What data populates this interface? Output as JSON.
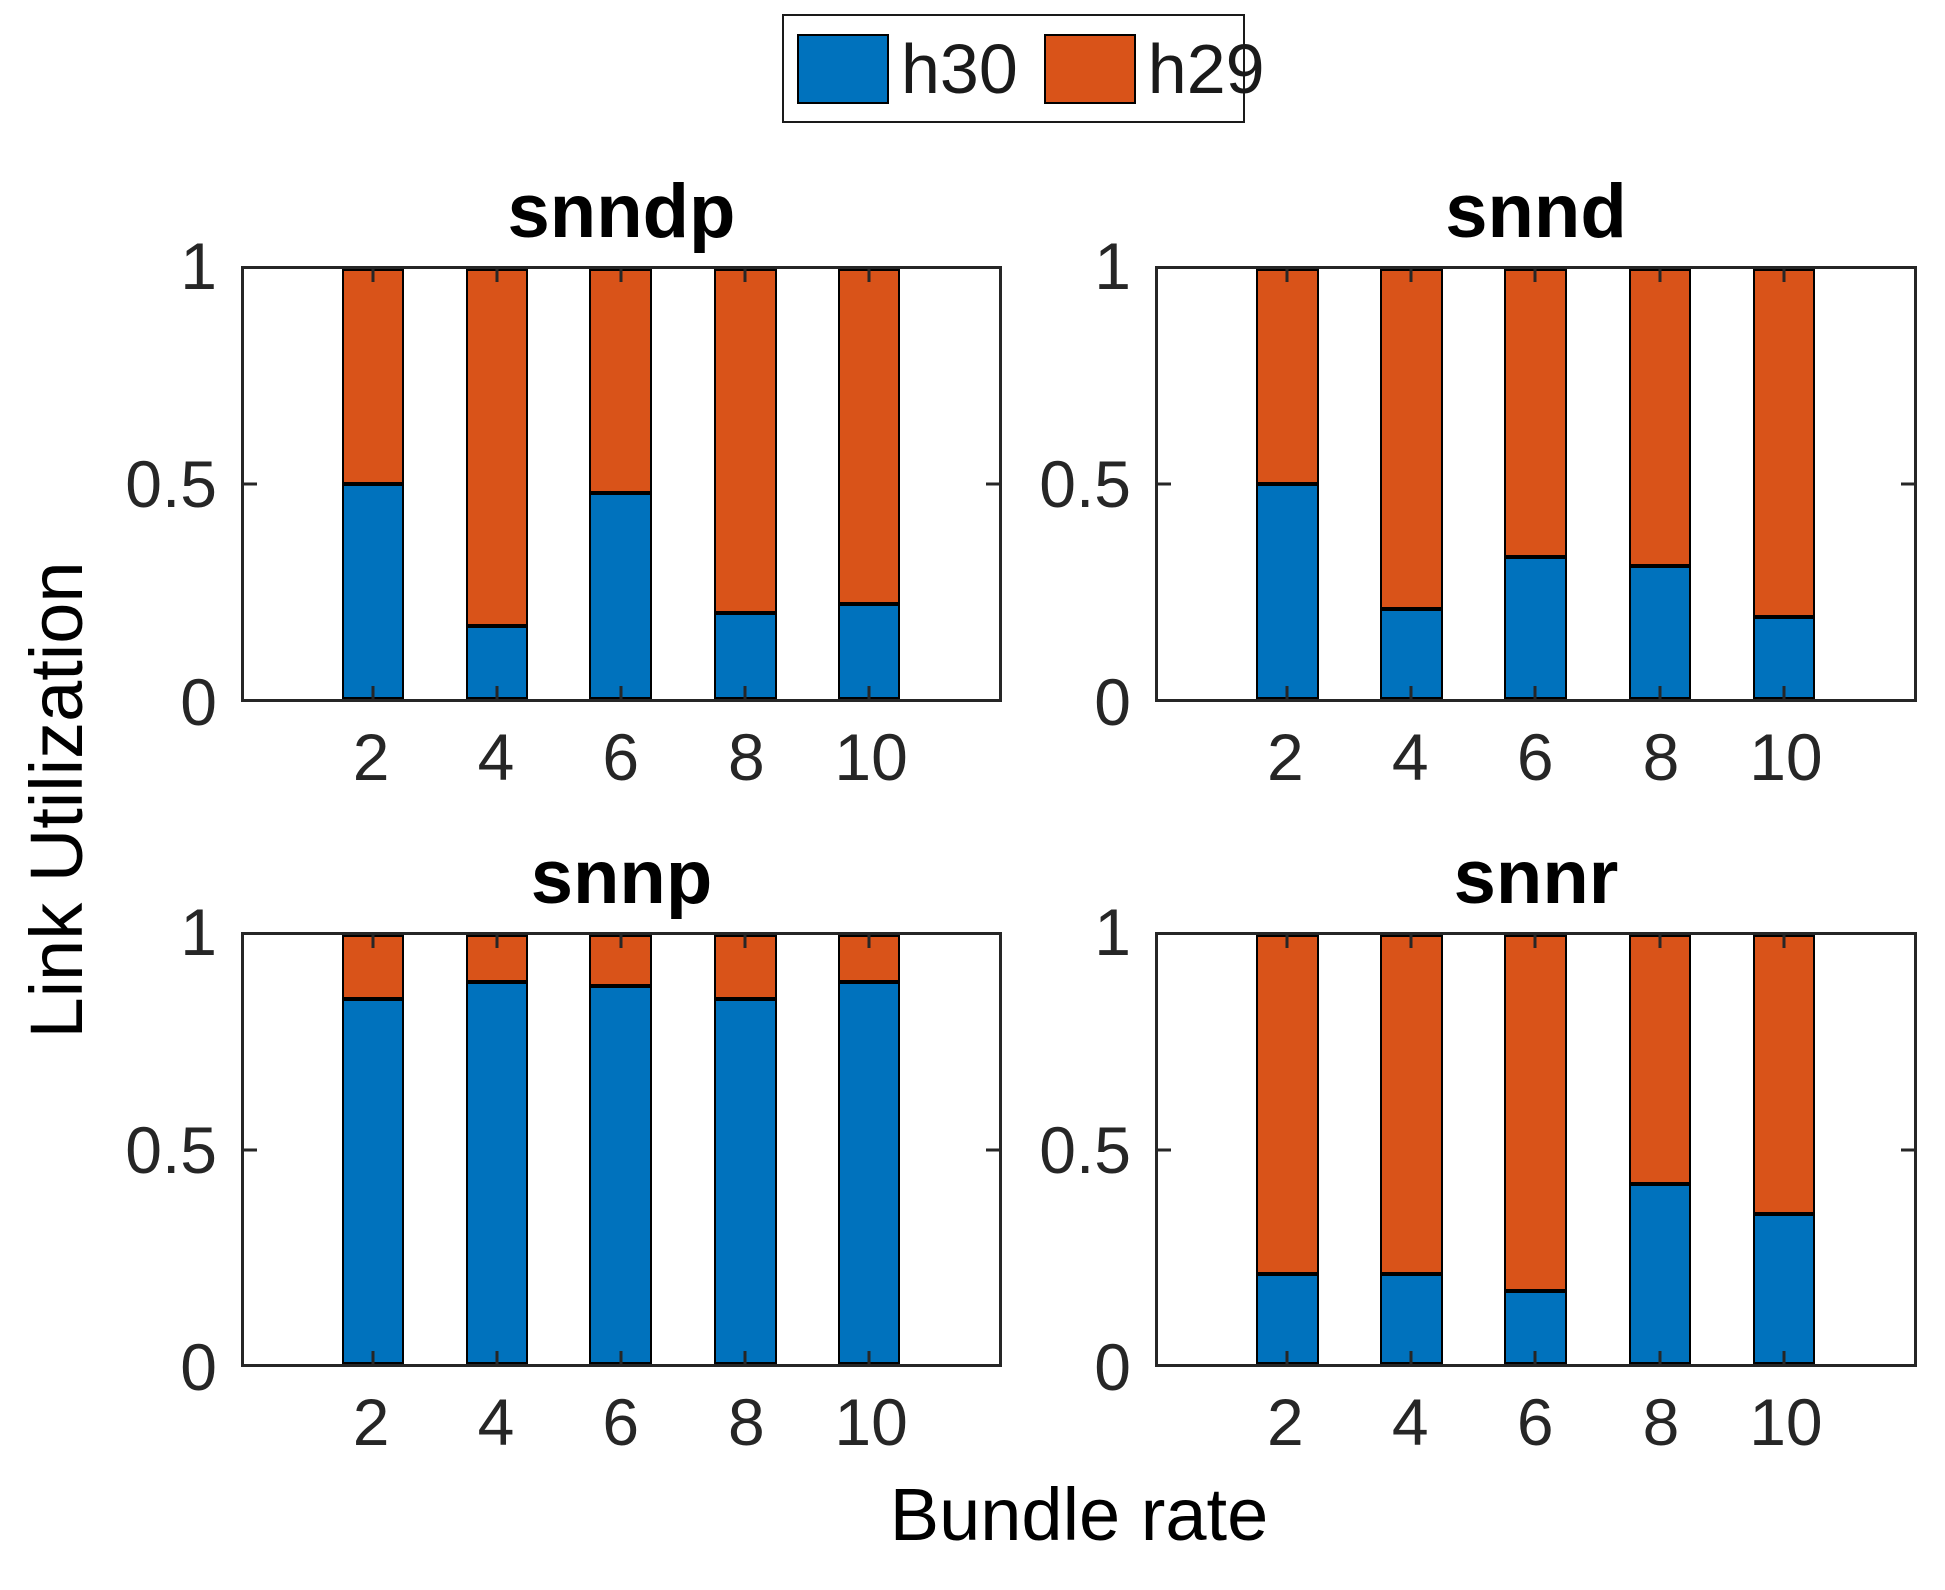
{
  "figure": {
    "background": "#ffffff",
    "axis_color": "#262626",
    "bar_edge_color": "#000000"
  },
  "legend": {
    "items": [
      {
        "label": "h30",
        "color": "#0072BD"
      },
      {
        "label": "h29",
        "color": "#D95319"
      }
    ]
  },
  "axes": {
    "ylabel": "Link Utilization",
    "xlabel": "Bundle rate",
    "ytick_labels": [
      "1",
      "0.5",
      "0"
    ],
    "xtick_labels": [
      "2",
      "4",
      "6",
      "8",
      "10"
    ]
  },
  "chart_data": [
    {
      "type": "bar",
      "stacked": true,
      "title": "snndp",
      "categories": [
        2,
        4,
        6,
        8,
        10
      ],
      "series": [
        {
          "name": "h30",
          "color": "#0072BD",
          "values": [
            0.5,
            0.17,
            0.48,
            0.2,
            0.22
          ]
        },
        {
          "name": "h29",
          "color": "#D95319",
          "values": [
            0.5,
            0.83,
            0.52,
            0.8,
            0.78
          ]
        }
      ],
      "xlabel": "Bundle rate",
      "ylabel": "Link Utilization",
      "ylim": [
        0,
        1
      ],
      "yticks": [
        0,
        0.5,
        1
      ],
      "grid": false,
      "legend_position": "top"
    },
    {
      "type": "bar",
      "stacked": true,
      "title": "snnd",
      "categories": [
        2,
        4,
        6,
        8,
        10
      ],
      "series": [
        {
          "name": "h30",
          "color": "#0072BD",
          "values": [
            0.5,
            0.21,
            0.33,
            0.31,
            0.19
          ]
        },
        {
          "name": "h29",
          "color": "#D95319",
          "values": [
            0.5,
            0.79,
            0.67,
            0.69,
            0.81
          ]
        }
      ],
      "xlabel": "Bundle rate",
      "ylabel": "Link Utilization",
      "ylim": [
        0,
        1
      ],
      "yticks": [
        0,
        0.5,
        1
      ],
      "grid": false,
      "legend_position": "top"
    },
    {
      "type": "bar",
      "stacked": true,
      "title": "snnp",
      "categories": [
        2,
        4,
        6,
        8,
        10
      ],
      "series": [
        {
          "name": "h30",
          "color": "#0072BD",
          "values": [
            0.85,
            0.89,
            0.88,
            0.85,
            0.89
          ]
        },
        {
          "name": "h29",
          "color": "#D95319",
          "values": [
            0.15,
            0.11,
            0.12,
            0.15,
            0.11
          ]
        }
      ],
      "xlabel": "Bundle rate",
      "ylabel": "Link Utilization",
      "ylim": [
        0,
        1
      ],
      "yticks": [
        0,
        0.5,
        1
      ],
      "grid": false,
      "legend_position": "top"
    },
    {
      "type": "bar",
      "stacked": true,
      "title": "snnr",
      "categories": [
        2,
        4,
        6,
        8,
        10
      ],
      "series": [
        {
          "name": "h30",
          "color": "#0072BD",
          "values": [
            0.21,
            0.21,
            0.17,
            0.42,
            0.35
          ]
        },
        {
          "name": "h29",
          "color": "#D95319",
          "values": [
            0.79,
            0.79,
            0.83,
            0.58,
            0.65
          ]
        }
      ],
      "xlabel": "Bundle rate",
      "ylabel": "Link Utilization",
      "ylim": [
        0,
        1
      ],
      "yticks": [
        0,
        0.5,
        1
      ],
      "grid": false,
      "legend_position": "top"
    }
  ]
}
